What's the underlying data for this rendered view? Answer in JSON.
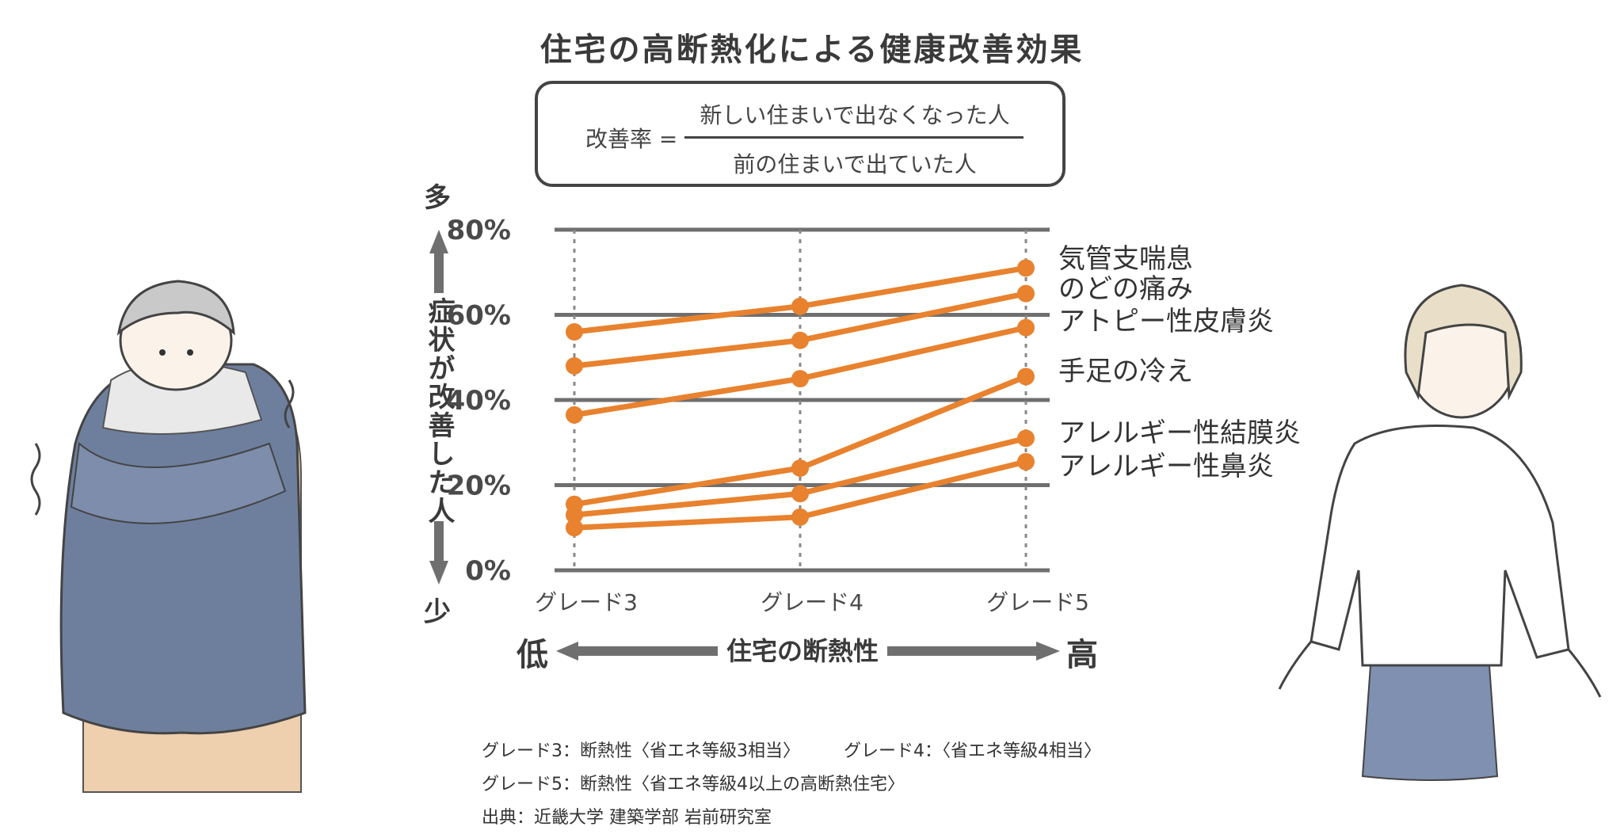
{
  "title": "住宅の高断熱化による健康改善効果",
  "formula": {
    "label": "改善率 =",
    "numerator": "新しい住まいで出なくなった人",
    "denominator": "前の住まいで出ていた人"
  },
  "y_axis": {
    "top_word": "多",
    "bottom_word": "少",
    "label": "症状が改善した人"
  },
  "x_axis": {
    "label": "住宅の断熱性",
    "low": "低",
    "high": "高"
  },
  "colors": {
    "line": "#E8822E",
    "grid": "#6f6f6f",
    "axis_arrow": "#6f6f6f"
  },
  "chart_data": {
    "type": "line",
    "title": "住宅の高断熱化による健康改善効果",
    "categories": [
      "グレード3",
      "グレード4",
      "グレード5"
    ],
    "ylim": [
      0,
      80
    ],
    "yticks": [
      0,
      20,
      40,
      60,
      80
    ],
    "ytick_labels": [
      "0%",
      "20%",
      "40%",
      "60%",
      "80%"
    ],
    "grid": true,
    "series": [
      {
        "name": "気管支喘息",
        "values": [
          56,
          62,
          71
        ]
      },
      {
        "name": "のどの痛み",
        "values": [
          48,
          54,
          65
        ]
      },
      {
        "name": "アトピー性皮膚炎",
        "values": [
          36.5,
          45,
          57
        ]
      },
      {
        "name": "手足の冷え",
        "values": [
          15.5,
          24,
          45.5
        ]
      },
      {
        "name": "アレルギー性結膜炎",
        "values": [
          13,
          18,
          31
        ]
      },
      {
        "name": "アレルギー性鼻炎",
        "values": [
          10,
          12.5,
          25.5
        ]
      }
    ]
  },
  "footnotes": {
    "grade3": "グレード3：断熱性〈省エネ等級3相当〉",
    "grade4": "グレード4：〈省エネ等級4相当〉",
    "grade5": "グレード5：断熱性〈省エネ等級4以上の高断熱住宅〉",
    "source": "出典：近畿大学 建築学部 岩前研究室"
  }
}
